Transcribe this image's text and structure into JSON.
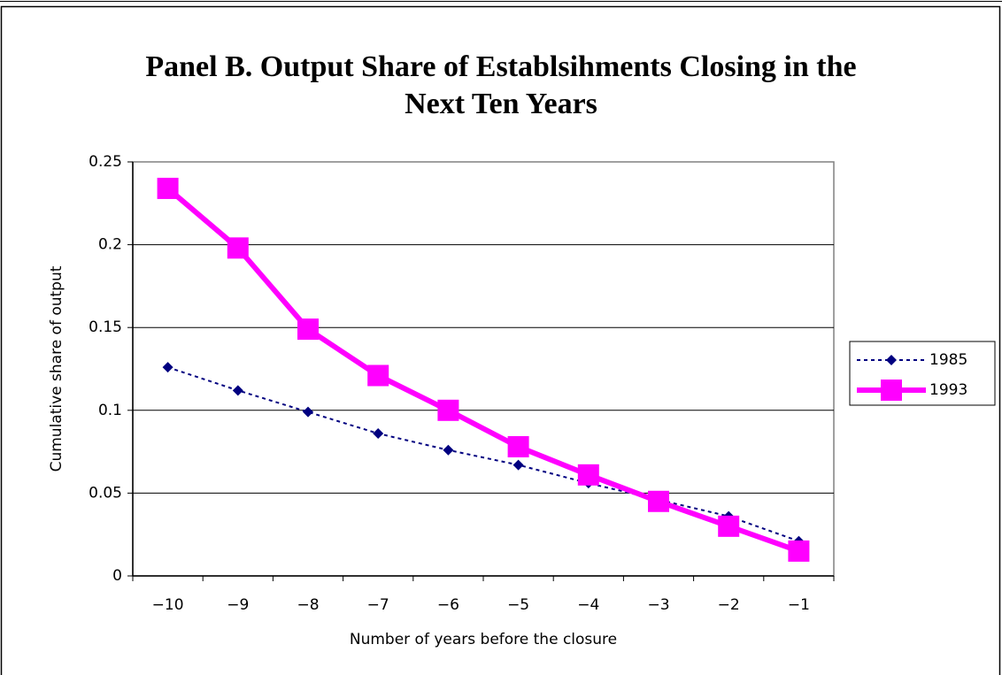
{
  "chart_data": {
    "type": "line",
    "title": [
      "Panel B. Output Share of Establsihments Closing in the",
      "Next Ten Years"
    ],
    "x_label": "Number of years before the closure",
    "y_label": "Cumulative share of output",
    "categories": [
      "−10",
      "−9",
      "−8",
      "−7",
      "−6",
      "−5",
      "−4",
      "−3",
      "−2",
      "−1"
    ],
    "series": [
      {
        "name": "1985",
        "color": "#000080",
        "style": "dashed",
        "marker": "diamond",
        "values": [
          0.126,
          0.112,
          0.099,
          0.086,
          0.076,
          0.067,
          0.056,
          0.046,
          0.036,
          0.021
        ]
      },
      {
        "name": "1993",
        "color": "#ff00ff",
        "style": "solid",
        "marker": "square",
        "values": [
          0.234,
          0.198,
          0.149,
          0.121,
          0.1,
          0.078,
          0.061,
          0.045,
          0.03,
          0.015
        ]
      }
    ],
    "ylim": [
      0,
      0.25
    ],
    "yticks": [
      0,
      0.05,
      0.1,
      0.15,
      0.2,
      0.25
    ],
    "grid": true,
    "legend": "right"
  }
}
